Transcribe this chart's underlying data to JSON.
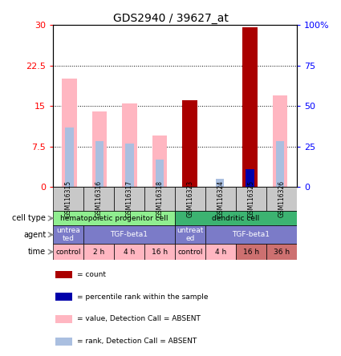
{
  "title": "GDS2940 / 39627_at",
  "samples": [
    "GSM116315",
    "GSM116316",
    "GSM116317",
    "GSM116318",
    "GSM116323",
    "GSM116324",
    "GSM116325",
    "GSM116326"
  ],
  "value_absent": [
    20.0,
    14.0,
    15.5,
    9.5,
    null,
    null,
    null,
    17.0
  ],
  "rank_absent": [
    11.0,
    8.5,
    8.0,
    5.0,
    null,
    1.5,
    null,
    8.5
  ],
  "count": [
    null,
    null,
    null,
    null,
    16.0,
    null,
    29.5,
    null
  ],
  "percentile_rank": [
    null,
    null,
    null,
    null,
    null,
    null,
    11.0,
    null
  ],
  "ylim_left": [
    0,
    30
  ],
  "ylim_right": [
    0,
    100
  ],
  "yticks_left": [
    0,
    7.5,
    15,
    22.5,
    30
  ],
  "yticks_right": [
    0,
    25,
    50,
    75,
    100
  ],
  "ytick_labels_left": [
    "0",
    "7.5",
    "15",
    "22.5",
    "30"
  ],
  "ytick_labels_right": [
    "0",
    "25",
    "50",
    "75",
    "100%"
  ],
  "cell_type_groups": [
    {
      "label": "hematopoietic progenitor cell",
      "start": 0,
      "end": 4,
      "color": "#90EE90"
    },
    {
      "label": "dendritic cell",
      "start": 4,
      "end": 8,
      "color": "#3CB371"
    }
  ],
  "agent_groups": [
    {
      "label": "untrea\nted",
      "start": 0,
      "end": 1,
      "color": "#7B7BC8"
    },
    {
      "label": "TGF-beta1",
      "start": 1,
      "end": 4,
      "color": "#7B7BC8"
    },
    {
      "label": "untreat\ned",
      "start": 4,
      "end": 5,
      "color": "#7B7BC8"
    },
    {
      "label": "TGF-beta1",
      "start": 5,
      "end": 8,
      "color": "#7B7BC8"
    }
  ],
  "time_groups": [
    {
      "label": "control",
      "start": 0,
      "end": 1,
      "color": "#FFB6C1"
    },
    {
      "label": "2 h",
      "start": 1,
      "end": 2,
      "color": "#FFB6C1"
    },
    {
      "label": "4 h",
      "start": 2,
      "end": 3,
      "color": "#FFB6C1"
    },
    {
      "label": "16 h",
      "start": 3,
      "end": 4,
      "color": "#FFB6C1"
    },
    {
      "label": "control",
      "start": 4,
      "end": 5,
      "color": "#FFB6C1"
    },
    {
      "label": "4 h",
      "start": 5,
      "end": 6,
      "color": "#FFB6C1"
    },
    {
      "label": "16 h",
      "start": 6,
      "end": 7,
      "color": "#CD7070"
    },
    {
      "label": "36 h",
      "start": 7,
      "end": 8,
      "color": "#CD7070"
    }
  ],
  "color_value_absent": "#FFB6C1",
  "color_rank_absent": "#AABFE0",
  "color_count": "#AA0000",
  "color_percentile": "#0000AA",
  "bar_width": 0.5,
  "fig_width": 4.25,
  "fig_height": 4.44,
  "dpi": 100
}
